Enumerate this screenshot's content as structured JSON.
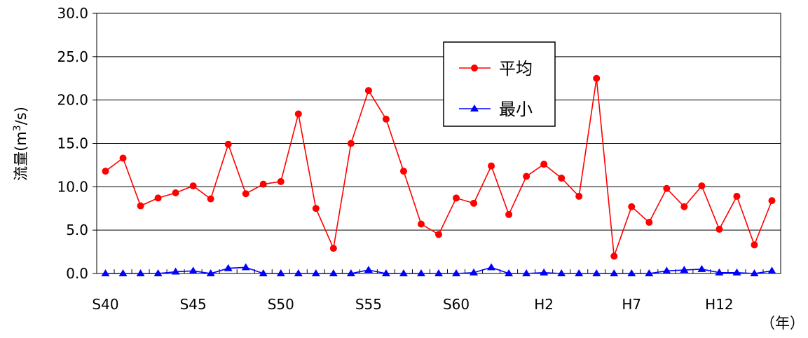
{
  "chart_data": {
    "type": "line",
    "ylabel_main": "流量(m",
    "ylabel_sup": "3",
    "ylabel_tail": "/s)",
    "x_unit": "（年）",
    "ylim": [
      0,
      30
    ],
    "y_ticks": [
      "0.0",
      "5.0",
      "10.0",
      "15.0",
      "20.0",
      "25.0",
      "30.0"
    ],
    "y_tick_values": [
      0,
      5,
      10,
      15,
      20,
      25,
      30
    ],
    "x_tick_labels": [
      {
        "index": 0,
        "label": "S40"
      },
      {
        "index": 5,
        "label": "S45"
      },
      {
        "index": 10,
        "label": "S50"
      },
      {
        "index": 15,
        "label": "S55"
      },
      {
        "index": 20,
        "label": "S60"
      },
      {
        "index": 25,
        "label": "H2"
      },
      {
        "index": 30,
        "label": "H7"
      },
      {
        "index": 35,
        "label": "H12"
      }
    ],
    "point_count": 39,
    "grid": "horizontal",
    "legend_position": "top-right",
    "series": [
      {
        "name": "平均",
        "color": "#ff0000",
        "marker": "circle",
        "values": [
          11.8,
          13.3,
          7.8,
          8.7,
          9.3,
          10.1,
          8.6,
          14.9,
          9.2,
          10.3,
          10.6,
          18.4,
          7.5,
          2.9,
          15.0,
          21.1,
          17.8,
          11.8,
          5.7,
          4.5,
          8.7,
          8.1,
          12.4,
          6.8,
          11.2,
          12.6,
          11.0,
          8.9,
          22.5,
          2.0,
          7.7,
          5.9,
          9.8,
          7.7,
          10.1,
          5.1,
          8.9,
          3.3,
          8.4
        ]
      },
      {
        "name": "最小",
        "color": "#0000ff",
        "marker": "triangle",
        "values": [
          0.0,
          0.0,
          0.0,
          0.0,
          0.2,
          0.3,
          0.0,
          0.6,
          0.7,
          0.0,
          0.0,
          0.0,
          0.0,
          0.0,
          0.0,
          0.4,
          0.0,
          0.0,
          0.0,
          0.0,
          0.0,
          0.1,
          0.7,
          0.0,
          0.0,
          0.1,
          0.0,
          0.0,
          0.0,
          0.0,
          0.0,
          0.0,
          0.3,
          0.4,
          0.5,
          0.1,
          0.1,
          0.0,
          0.3
        ]
      }
    ]
  }
}
